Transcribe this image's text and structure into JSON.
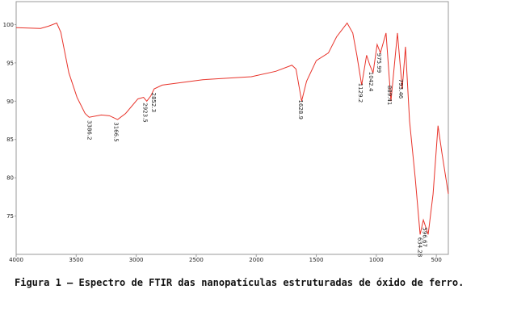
{
  "chart_data": {
    "type": "line",
    "x": [
      4000,
      3797,
      3730,
      3662,
      3628,
      3561,
      3493,
      3426,
      3392,
      3291,
      3223,
      3155,
      3088,
      2986,
      2939,
      2912,
      2878,
      2851,
      2784,
      2446,
      2041,
      1838,
      1703,
      1669,
      1622,
      1581,
      1500,
      1399,
      1331,
      1243,
      1196,
      1162,
      1122,
      1081,
      1054,
      1027,
      993,
      966,
      919,
      878,
      824,
      784,
      757,
      723,
      676,
      635,
      608,
      568,
      527,
      486,
      453,
      400
    ],
    "series": [
      {
        "color": "#e8332a",
        "values": [
          99.6,
          99.5,
          99.8,
          100.2,
          99,
          93.7,
          90.5,
          88.4,
          87.9,
          88.2,
          88.1,
          87.6,
          88.4,
          90.3,
          90.5,
          90,
          90.7,
          91.6,
          92.1,
          92.8,
          93.2,
          93.9,
          94.7,
          94.2,
          90,
          92.6,
          95.3,
          96.3,
          98.4,
          100.2,
          98.9,
          96,
          92.1,
          96,
          94.7,
          93.7,
          97.4,
          96.3,
          98.9,
          90,
          98.9,
          91.6,
          97.1,
          87.4,
          80,
          72.6,
          74.5,
          72.6,
          77.9,
          86.8,
          83.2,
          77.9
        ]
      }
    ],
    "xlim": [
      4000,
      400
    ],
    "ylim": [
      70,
      103
    ],
    "xticks": [
      4000,
      3500,
      3000,
      2500,
      2000,
      1500,
      1000,
      500
    ],
    "yticks": [
      100,
      95,
      90,
      85,
      80,
      75
    ],
    "annotations": [
      {
        "x": 3386.2,
        "label": "3386.2"
      },
      {
        "x": 3166.5,
        "label": "3166.5"
      },
      {
        "x": 2923.5,
        "label": "2923.5"
      },
      {
        "x": 2852.3,
        "label": "2852.3"
      },
      {
        "x": 1628.9,
        "label": "1628.9"
      },
      {
        "x": 1129.2,
        "label": "1129.2"
      },
      {
        "x": 1042.4,
        "label": "1042.4"
      },
      {
        "x": 975.99,
        "label": "975.99"
      },
      {
        "x": 889.41,
        "label": "889.41"
      },
      {
        "x": 793.46,
        "label": "793.46"
      },
      {
        "x": 634.28,
        "label": "634.28"
      },
      {
        "x": 596.67,
        "label": "596.67"
      }
    ],
    "caption": "Figura 1 – Espectro de FTIR das nanopatículas estruturadas de óxido de ferro."
  }
}
